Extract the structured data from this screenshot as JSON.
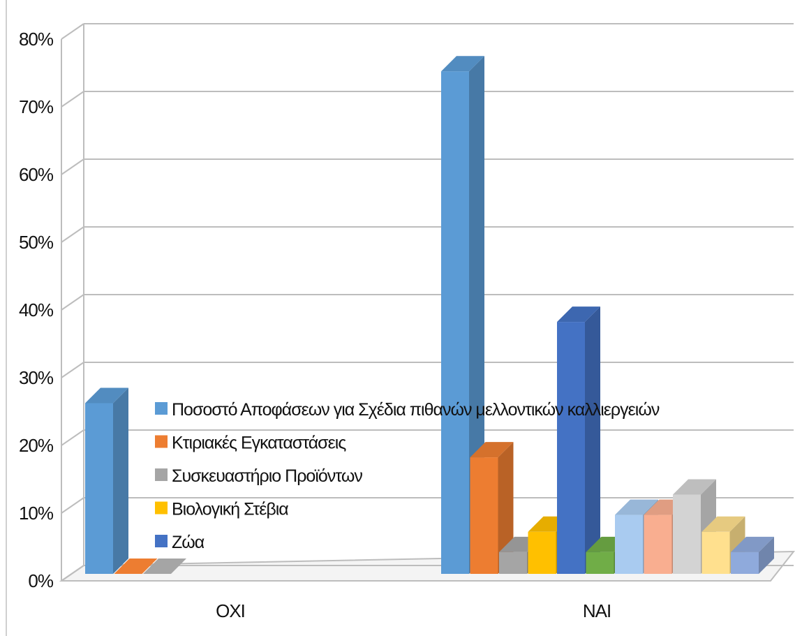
{
  "chart_data": {
    "type": "bar",
    "style": "3d-clustered-column",
    "categories": [
      "ΟΧΙ",
      "ΝΑΙ"
    ],
    "y_ticks": [
      "0%",
      "10%",
      "20%",
      "30%",
      "40%",
      "50%",
      "60%",
      "70%",
      "80%"
    ],
    "ylim": [
      0,
      80
    ],
    "grid": true,
    "legend_position": "center-left",
    "series": [
      {
        "name": "Ποσοστό Αποφάσεων για Σχέδια πιθανών μελλοντικών καλλιεργειών",
        "color": "#5b9bd5",
        "values": [
          25,
          74
        ]
      },
      {
        "name": "Κτιριακές Εγκαταστάσεις",
        "color": "#ed7d31",
        "values": [
          0,
          17
        ]
      },
      {
        "name": "Συσκευαστήριο Προϊόντων",
        "color": "#a5a5a5",
        "values": [
          0,
          3
        ]
      },
      {
        "name": "Βιολογική Στέβια",
        "color": "#ffc000",
        "values": [
          null,
          6
        ]
      },
      {
        "name": "Ζώα",
        "color": "#4472c4",
        "values": [
          null,
          37
        ]
      },
      {
        "name": "",
        "color": "#70ad47",
        "values": [
          null,
          3
        ]
      },
      {
        "name": "",
        "color": "#a9cbf0",
        "values": [
          null,
          8.5
        ]
      },
      {
        "name": "",
        "color": "#f9ae90",
        "values": [
          null,
          8.5
        ]
      },
      {
        "name": "",
        "color": "#d3d3d3",
        "values": [
          null,
          11.5
        ]
      },
      {
        "name": "",
        "color": "#ffe08e",
        "values": [
          null,
          6
        ]
      },
      {
        "name": "",
        "color": "#8faadc",
        "values": [
          null,
          3
        ]
      }
    ]
  }
}
